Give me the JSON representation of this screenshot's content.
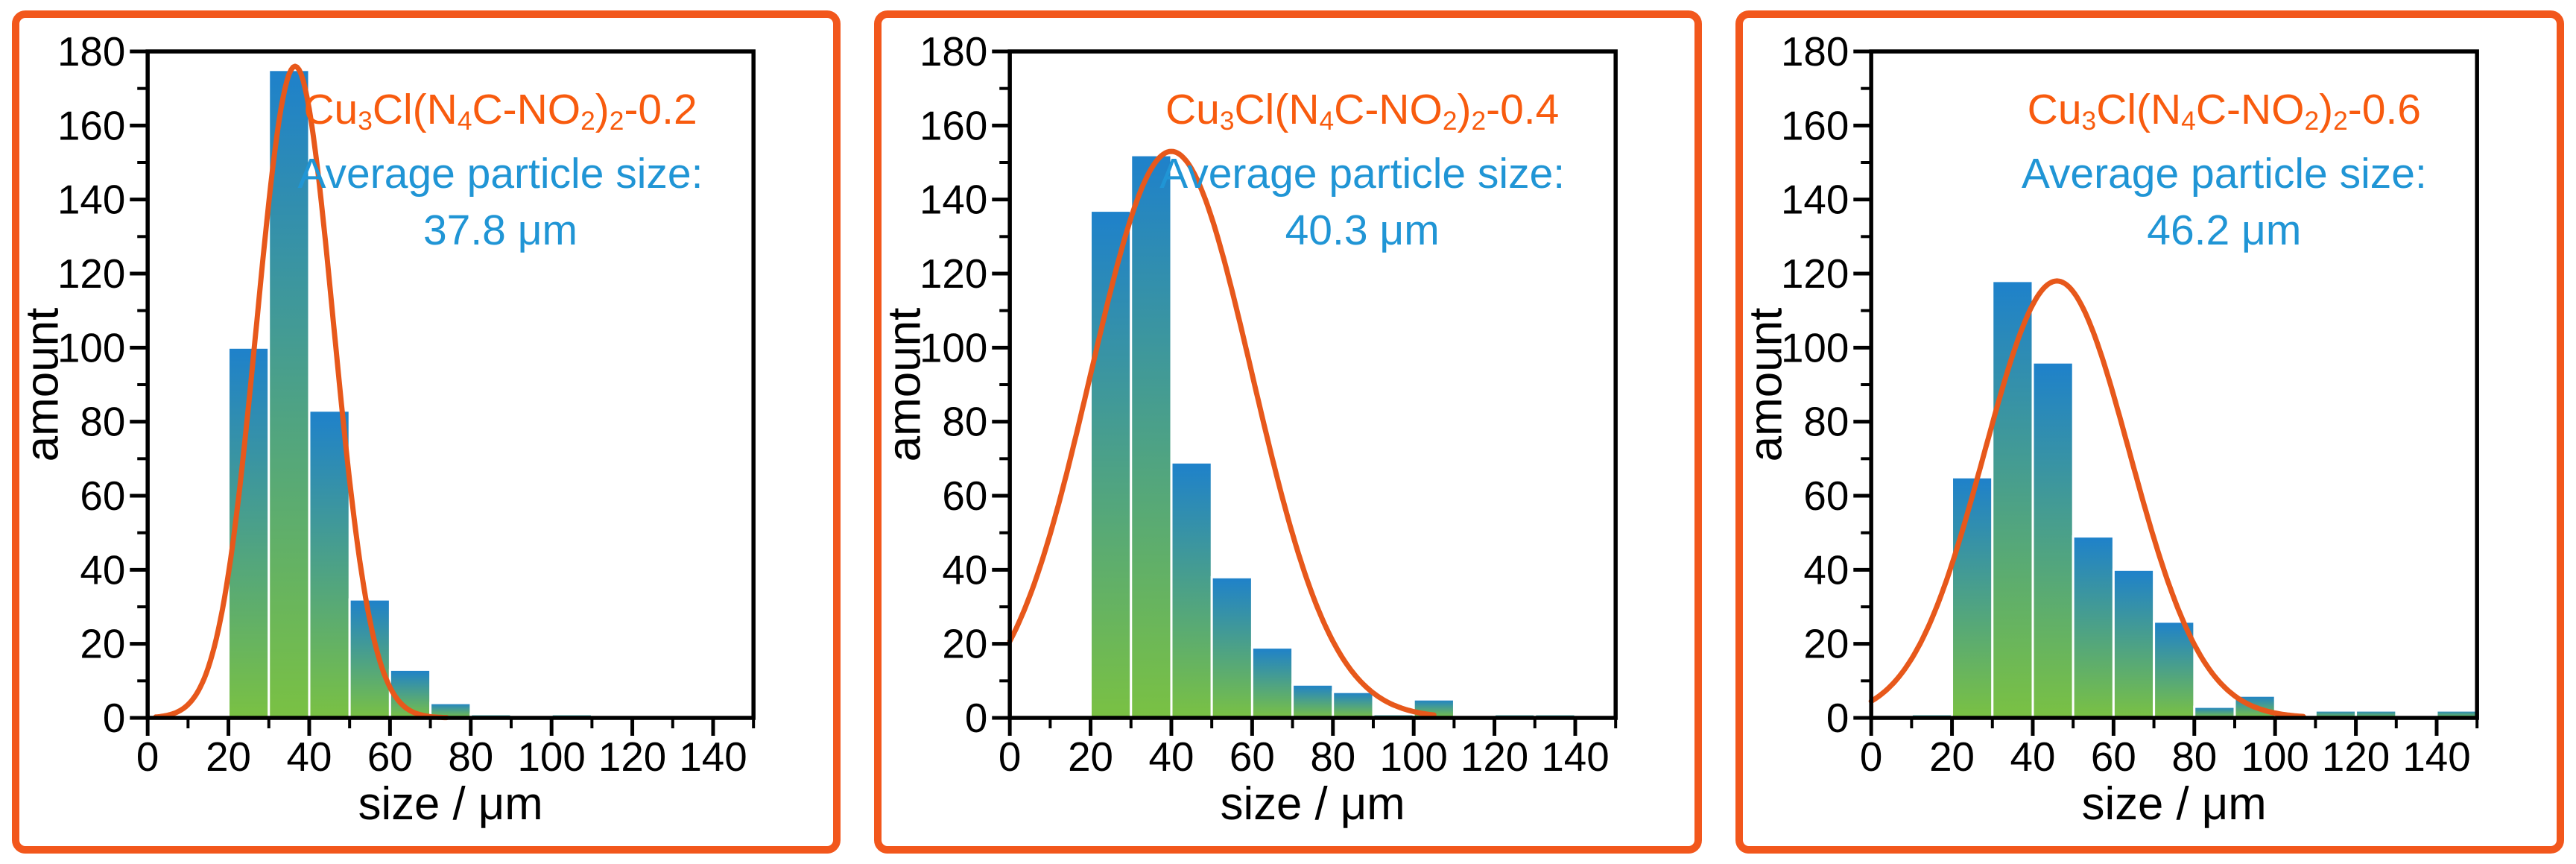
{
  "style": {
    "page_bg": "#ffffff",
    "panel_border": "#f2571c",
    "axis_color": "#000000",
    "bar_top": "#1e81cb",
    "bar_bottom": "#7ac143",
    "bar_divider": "#ffffff",
    "curve_color": "#e7581b",
    "title_color": "#f85b0e",
    "annotation_color": "#2095d5"
  },
  "chart_data": [
    {
      "type": "bar",
      "title": "Cu3Cl(N4C-NO2)2-0.2",
      "title_segments": [
        [
          "Cu",
          0
        ],
        [
          "3",
          1
        ],
        [
          "Cl(N",
          0
        ],
        [
          "4",
          1
        ],
        [
          "C-NO",
          0
        ],
        [
          "2",
          1
        ],
        [
          ")",
          0
        ],
        [
          "2",
          1
        ],
        [
          "-0.2",
          0
        ]
      ],
      "annotation_line1": "Average particle size:",
      "annotation_value": "37.8 μm",
      "xlabel": "size / μm",
      "ylabel": "amount",
      "xlim": [
        0,
        150
      ],
      "ylim": [
        0,
        180
      ],
      "x_tick_step": 20,
      "x_tick_max_label": 140,
      "x_minor_step": 10,
      "y_tick_step": 20,
      "y_minor_step": 10,
      "grid": false,
      "histogram": {
        "bin_start": 0,
        "bin_width": 10,
        "values": [
          0,
          0,
          100,
          175,
          83,
          32,
          13,
          4,
          1,
          0,
          1,
          0,
          0,
          0,
          0
        ]
      },
      "fit_curve": {
        "shape": "gaussian",
        "amplitude": 176,
        "mean": 36.5,
        "sigma": 9.5,
        "x_start": 2,
        "x_end": 74
      }
    },
    {
      "type": "bar",
      "title": "Cu3Cl(N4C-NO2)2-0.4",
      "title_segments": [
        [
          "Cu",
          0
        ],
        [
          "3",
          1
        ],
        [
          "Cl(N",
          0
        ],
        [
          "4",
          1
        ],
        [
          "C-NO",
          0
        ],
        [
          "2",
          1
        ],
        [
          ")",
          0
        ],
        [
          "2",
          1
        ],
        [
          "-0.4",
          0
        ]
      ],
      "annotation_line1": "Average particle size:",
      "annotation_value": "40.3 μm",
      "xlabel": "size / μm",
      "ylabel": "amount",
      "xlim": [
        0,
        150
      ],
      "ylim": [
        0,
        180
      ],
      "x_tick_step": 20,
      "x_tick_max_label": 140,
      "x_minor_step": 10,
      "y_tick_step": 20,
      "y_minor_step": 10,
      "grid": false,
      "histogram": {
        "bin_start": 0,
        "bin_width": 10,
        "values": [
          0,
          0,
          137,
          152,
          69,
          38,
          19,
          9,
          7,
          1,
          5,
          0,
          1,
          1,
          0
        ]
      },
      "fit_curve": {
        "shape": "gaussian",
        "amplitude": 153,
        "mean": 40,
        "sigma": 20,
        "x_start": 0,
        "x_end": 105
      }
    },
    {
      "type": "bar",
      "title": "Cu3Cl(N4C-NO2)2-0.6",
      "title_segments": [
        [
          "Cu",
          0
        ],
        [
          "3",
          1
        ],
        [
          "Cl(N",
          0
        ],
        [
          "4",
          1
        ],
        [
          "C-NO",
          0
        ],
        [
          "2",
          1
        ],
        [
          ")",
          0
        ],
        [
          "2",
          1
        ],
        [
          "-0.6",
          0
        ]
      ],
      "annotation_line1": "Average particle size:",
      "annotation_value": "46.2 μm",
      "xlabel": "size / μm",
      "ylabel": "amount",
      "xlim": [
        0,
        150
      ],
      "ylim": [
        0,
        180
      ],
      "x_tick_step": 20,
      "x_tick_max_label": 140,
      "x_minor_step": 10,
      "y_tick_step": 20,
      "y_minor_step": 10,
      "grid": false,
      "histogram": {
        "bin_start": 0,
        "bin_width": 10,
        "values": [
          0,
          1,
          65,
          118,
          96,
          49,
          40,
          26,
          3,
          6,
          0,
          2,
          2,
          0,
          2
        ]
      },
      "fit_curve": {
        "shape": "gaussian",
        "amplitude": 118,
        "mean": 46,
        "sigma": 18,
        "x_start": 0,
        "x_end": 107
      }
    }
  ]
}
